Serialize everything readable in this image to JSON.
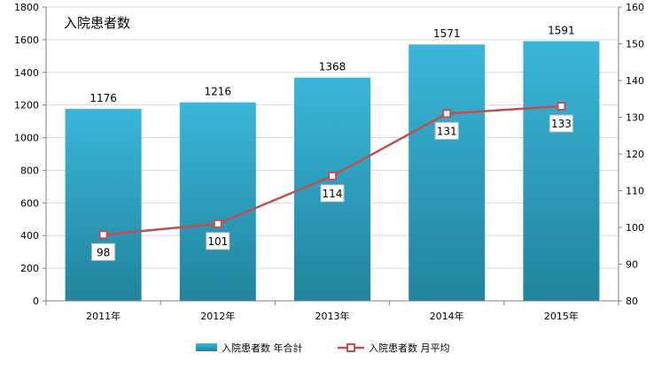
{
  "chart_data": {
    "type": "bar",
    "title": "入院患者数",
    "categories": [
      "2011年",
      "2012年",
      "2013年",
      "2014年",
      "2015年"
    ],
    "series": [
      {
        "name": "入院患者数 年合計",
        "type": "bar",
        "axis": "left",
        "values": [
          1176,
          1216,
          1368,
          1571,
          1591
        ]
      },
      {
        "name": "入院患者数 月平均",
        "type": "line",
        "axis": "right",
        "values": [
          98,
          101,
          114,
          131,
          133
        ]
      }
    ],
    "y_left": {
      "min": 0,
      "max": 1800,
      "ticks": [
        "0",
        "200",
        "400",
        "600",
        "800",
        "1000",
        "1200",
        "1400",
        "1600",
        "1800"
      ]
    },
    "y_right": {
      "min": 80,
      "max": 160,
      "ticks": [
        "80",
        "90",
        "100",
        "110",
        "120",
        "130",
        "140",
        "150",
        "160"
      ]
    },
    "grid": true,
    "legend_position": "bottom",
    "colors": {
      "bar_top": "#3ab6da",
      "bar_bottom": "#21849d",
      "line": "#c0504d",
      "marker_fill": "#ffffff",
      "grid": "#d9d9d9",
      "axis": "#808080"
    }
  }
}
